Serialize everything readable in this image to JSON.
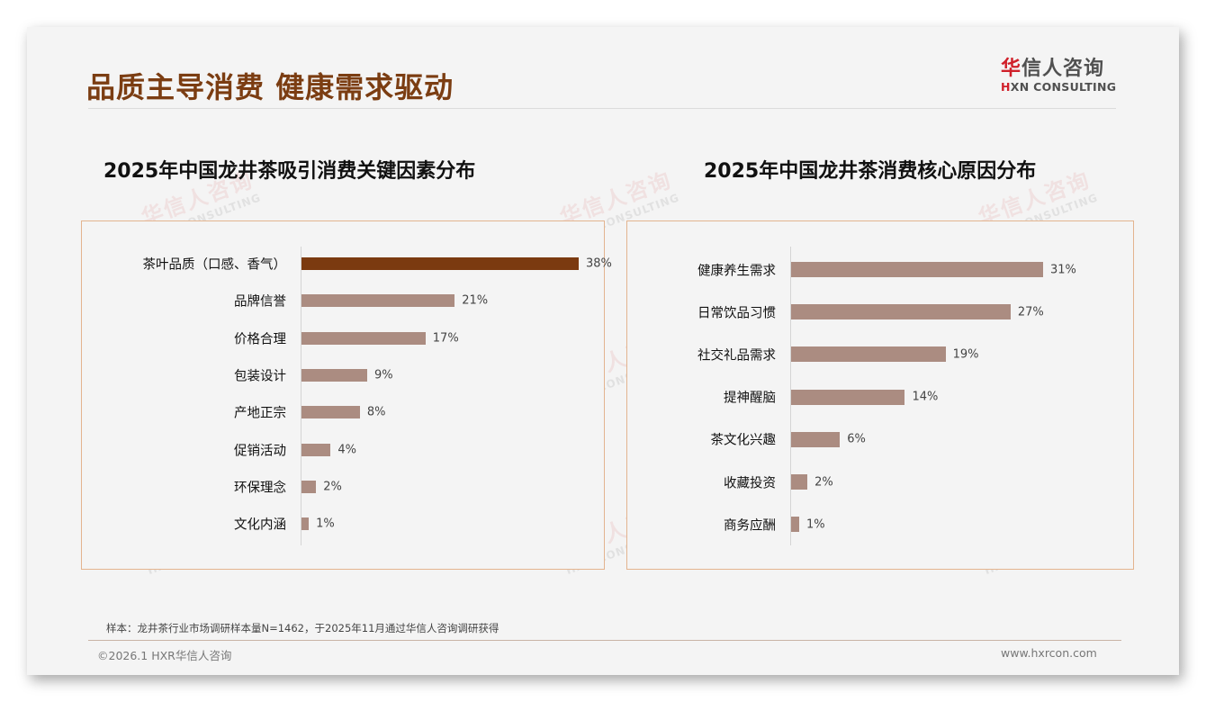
{
  "header": {
    "title": "品质主导消费 健康需求驱动",
    "logo_cn_first": "华",
    "logo_cn_rest": "信人咨询",
    "logo_en_h": "H",
    "logo_en_rest": "XN CONSULTING"
  },
  "watermark": {
    "cn": "华信人咨询",
    "en": "HXN CONSULTING"
  },
  "colors": {
    "accent_bar": "#7b3a10",
    "default_bar": "#ab8c81",
    "title": "#7b3d12",
    "panel_border": "#e3b48f"
  },
  "chart_data": [
    {
      "type": "bar",
      "orientation": "horizontal",
      "title": "2025年中国龙井茶吸引消费关键因素分布",
      "categories": [
        "茶叶品质（口感、香气）",
        "品牌信誉",
        "价格合理",
        "包装设计",
        "产地正宗",
        "促销活动",
        "环保理念",
        "文化内涵"
      ],
      "values": [
        38,
        21,
        17,
        9,
        8,
        4,
        2,
        1
      ],
      "labels": [
        "38%",
        "21%",
        "17%",
        "9%",
        "8%",
        "4%",
        "2%",
        "1%"
      ],
      "unit": "%",
      "highlight_index": 0,
      "xlabel": "",
      "ylabel": "",
      "grid": false,
      "legend": "none"
    },
    {
      "type": "bar",
      "orientation": "horizontal",
      "title": "2025年中国龙井茶消费核心原因分布",
      "categories": [
        "健康养生需求",
        "日常饮品习惯",
        "社交礼品需求",
        "提神醒脑",
        "茶文化兴趣",
        "收藏投资",
        "商务应酬"
      ],
      "values": [
        31,
        27,
        19,
        14,
        6,
        2,
        1
      ],
      "labels": [
        "31%",
        "27%",
        "19%",
        "14%",
        "6%",
        "2%",
        "1%"
      ],
      "unit": "%",
      "highlight_index": null,
      "xlabel": "",
      "ylabel": "",
      "grid": false,
      "legend": "none"
    }
  ],
  "footer": {
    "note": "样本：龙井茶行业市场调研样本量N=1462，于2025年11月通过华信人咨询调研获得",
    "copyright": "©2026.1 HXR华信人咨询",
    "website": "www.hxrcon.com"
  }
}
